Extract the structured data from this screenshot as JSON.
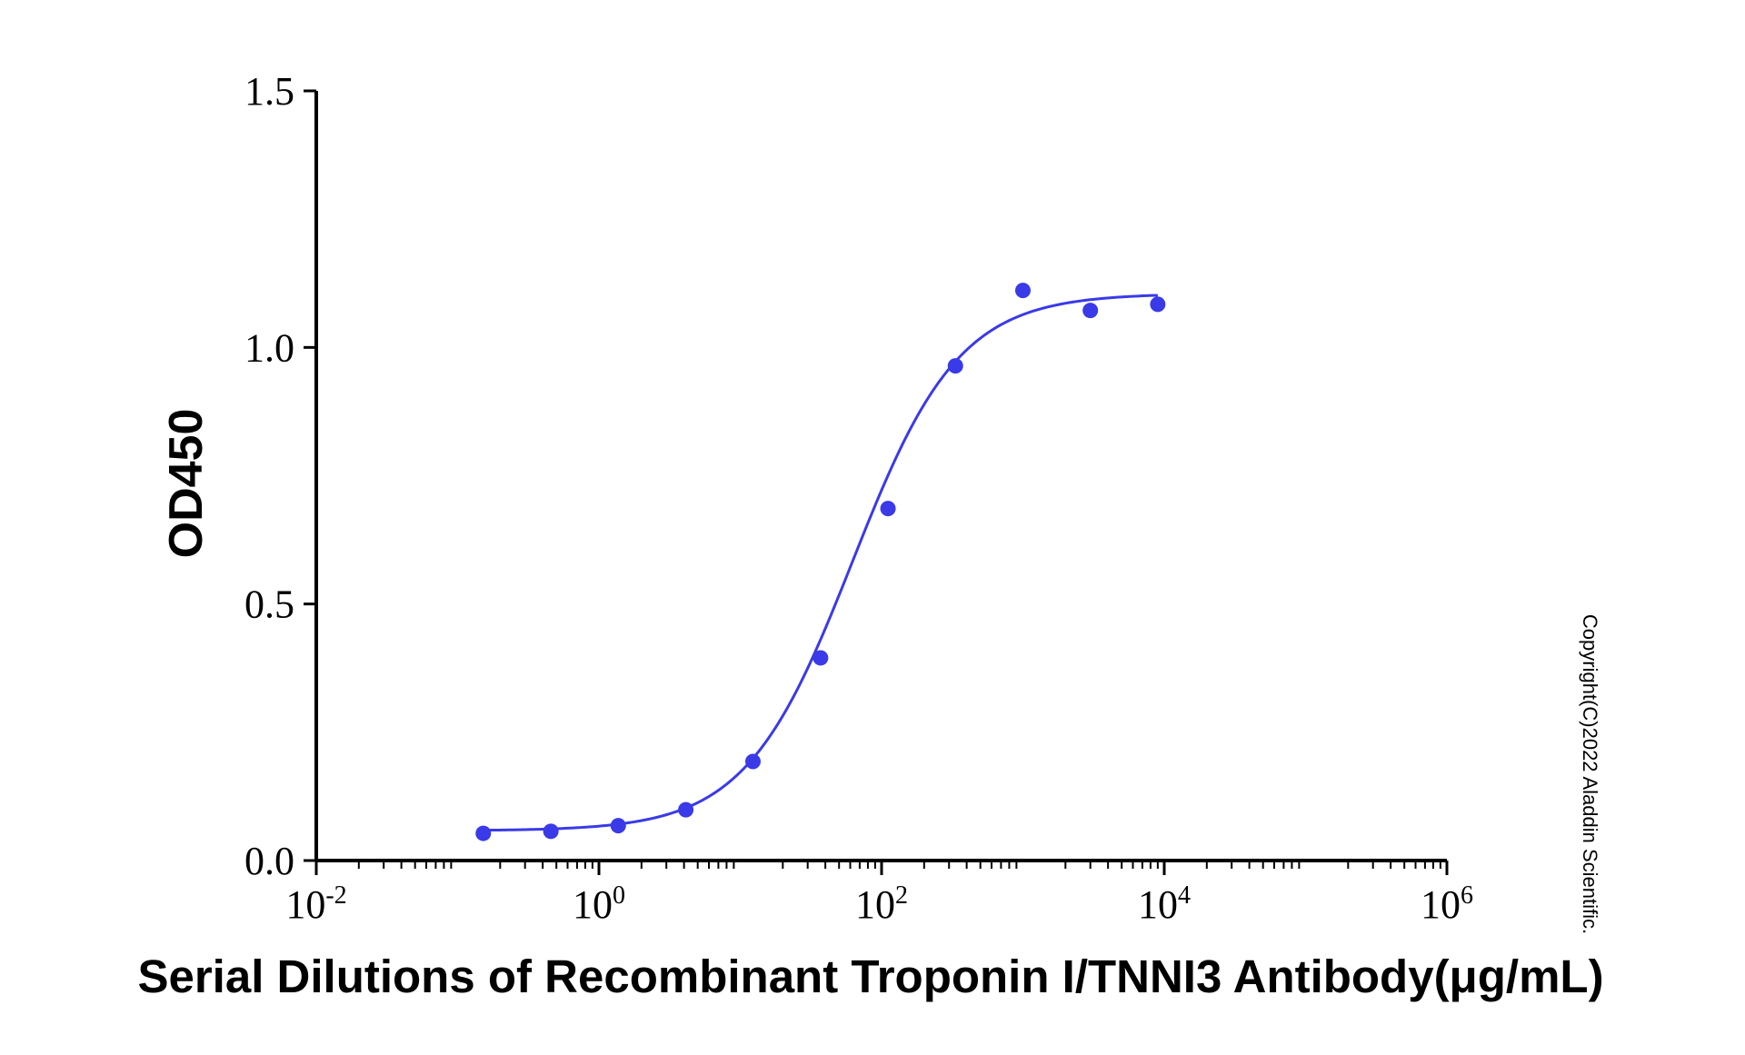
{
  "chart_data": {
    "type": "scatter",
    "xscale": "log",
    "xlim": [
      0.01,
      1000000
    ],
    "ylim": [
      0,
      1.5
    ],
    "xlabel": "Serial Dilutions of Recombinant Troponin I/TNNI3 Antibody(μg/mL)",
    "ylabel": "OD450",
    "yticks": [
      "0.0",
      "0.5",
      "1.0",
      "1.5"
    ],
    "xticks": [
      {
        "base": "10",
        "exp": "-2",
        "value": 0.01
      },
      {
        "base": "10",
        "exp": "0",
        "value": 1
      },
      {
        "base": "10",
        "exp": "2",
        "value": 100
      },
      {
        "base": "10",
        "exp": "4",
        "value": 10000
      },
      {
        "base": "10",
        "exp": "6",
        "value": 1000000
      }
    ],
    "grid": false,
    "color": "#3a3ae8",
    "points": [
      {
        "x": 0.152,
        "y": 0.053
      },
      {
        "x": 0.457,
        "y": 0.057
      },
      {
        "x": 1.37,
        "y": 0.068
      },
      {
        "x": 4.12,
        "y": 0.099
      },
      {
        "x": 12.3,
        "y": 0.193
      },
      {
        "x": 37.0,
        "y": 0.395
      },
      {
        "x": 111,
        "y": 0.686
      },
      {
        "x": 333,
        "y": 0.964
      },
      {
        "x": 1000,
        "y": 1.111
      },
      {
        "x": 3000,
        "y": 1.072
      },
      {
        "x": 9000,
        "y": 1.084
      }
    ],
    "fit": {
      "type": "4PL",
      "bottom": 0.058,
      "top": 1.105,
      "ec50": 62,
      "hill": 1.15,
      "x_range": [
        0.152,
        9000
      ]
    }
  },
  "copyright": "Copyright(C)2022 Aladdin Scientific."
}
